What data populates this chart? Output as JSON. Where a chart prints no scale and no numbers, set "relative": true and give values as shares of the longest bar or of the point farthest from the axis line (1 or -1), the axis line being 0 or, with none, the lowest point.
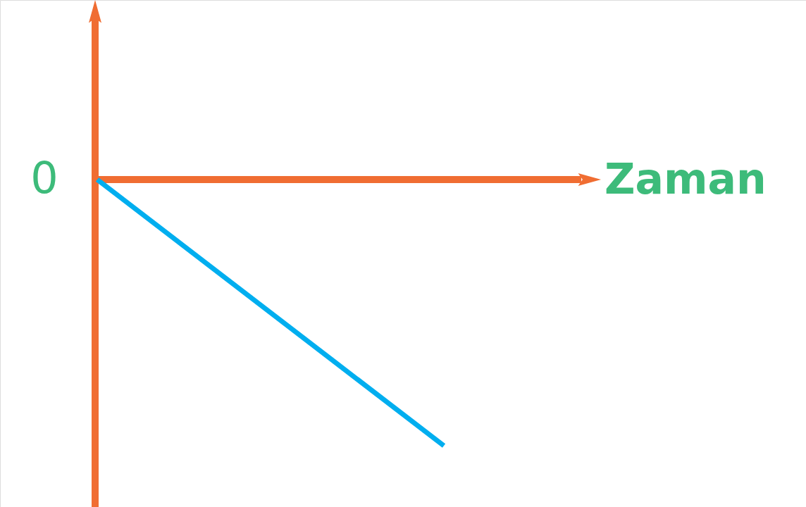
{
  "chart_data": {
    "type": "line",
    "relative": true,
    "xlabel": "Zaman",
    "categories": [
      null,
      null
    ],
    "series": [
      {
        "color": "#00aeef",
        "values": [
          0,
          -1
        ]
      }
    ],
    "annotations": [
      "0"
    ],
    "line_style": "solid"
  }
}
